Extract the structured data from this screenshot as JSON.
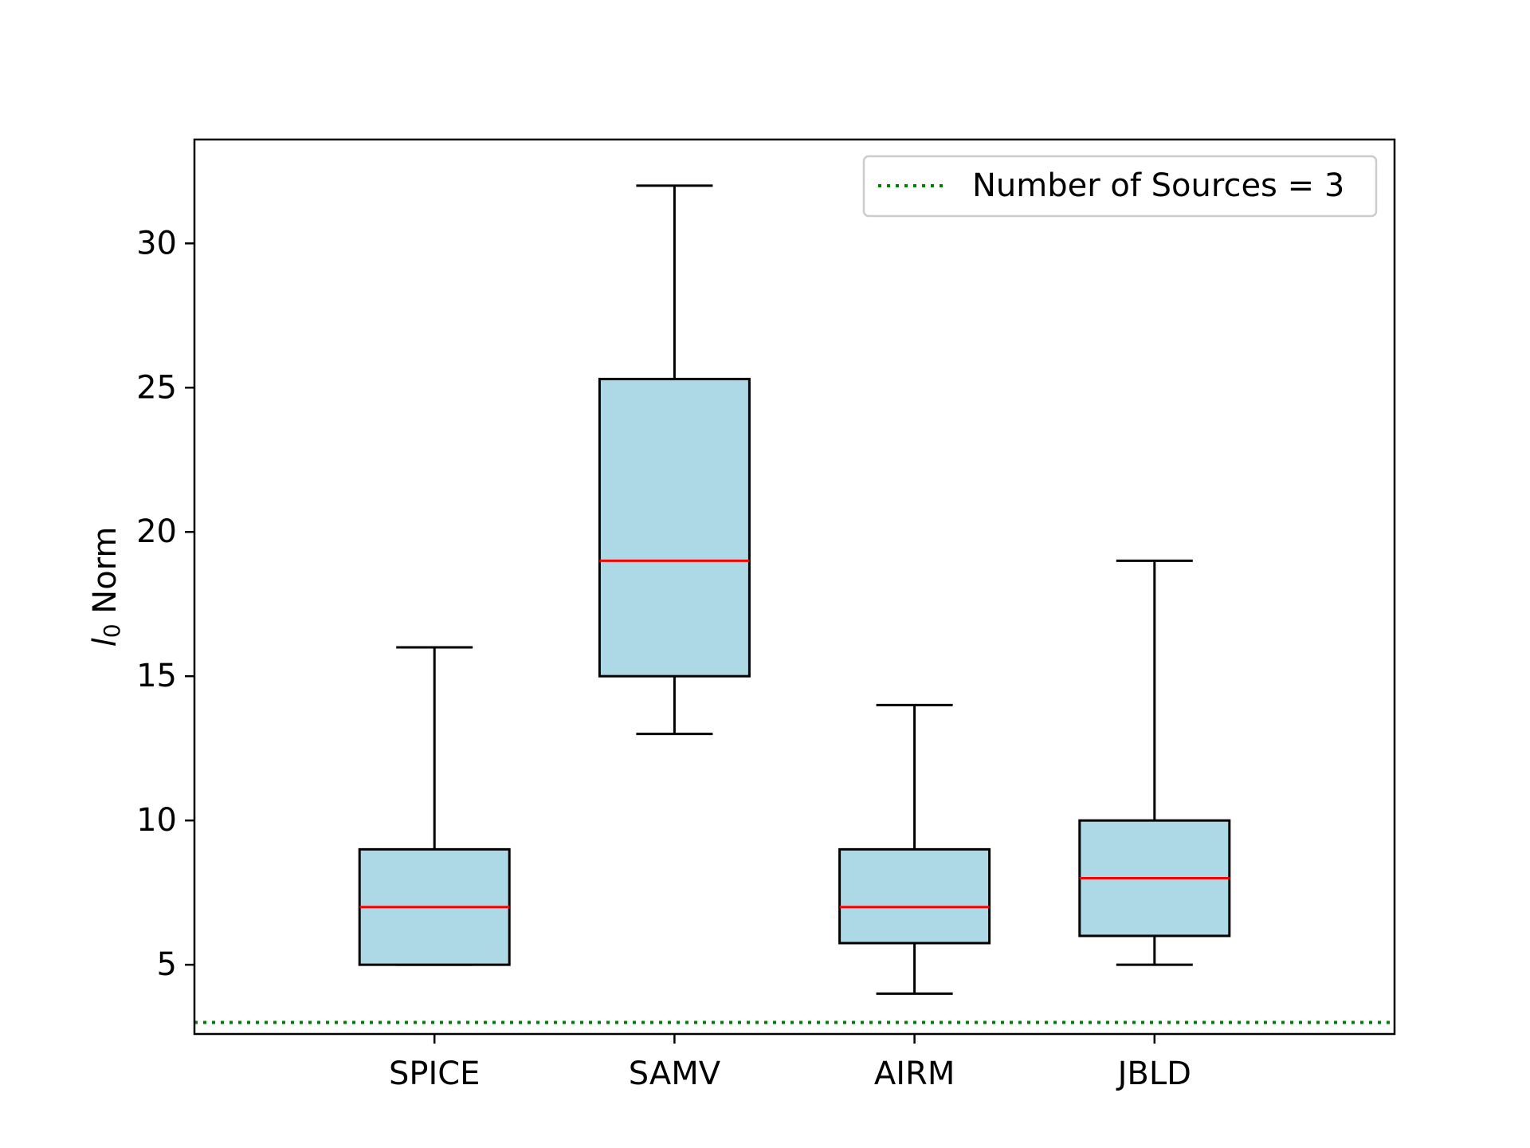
{
  "chart_data": {
    "type": "box",
    "title": "",
    "xlabel": "",
    "ylabel": "Norm",
    "ylabel_symbol": "l",
    "ylabel_subscript": "0",
    "categories": [
      "SPICE",
      "SAMV",
      "AIRM",
      "JBLD"
    ],
    "boxes": [
      {
        "name": "SPICE",
        "whisker_low": 5,
        "q1": 5,
        "median": 7,
        "q3": 9,
        "whisker_high": 16
      },
      {
        "name": "SAMV",
        "whisker_low": 13,
        "q1": 15,
        "median": 19,
        "q3": 25.3,
        "whisker_high": 32
      },
      {
        "name": "AIRM",
        "whisker_low": 4,
        "q1": 5.75,
        "median": 7,
        "q3": 9,
        "whisker_high": 14
      },
      {
        "name": "JBLD",
        "whisker_low": 5,
        "q1": 6,
        "median": 8,
        "q3": 10,
        "whisker_high": 19
      }
    ],
    "reference_line": {
      "label": "Number of Sources = 3",
      "value": 3,
      "style": "dotted",
      "color": "#008000"
    },
    "ylim": [
      2.6,
      33.6
    ],
    "yticks": [
      5,
      10,
      15,
      20,
      25,
      30
    ],
    "grid": false,
    "legend_position": "top-right",
    "colors": {
      "box_fill": "#add8e6",
      "box_edge": "#000000",
      "median": "#ff0000",
      "reference": "#008000"
    }
  }
}
